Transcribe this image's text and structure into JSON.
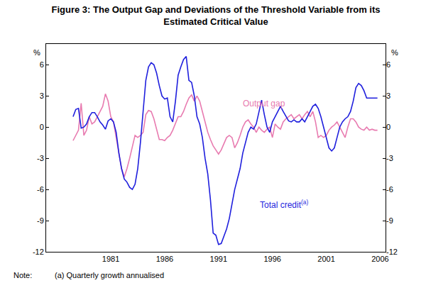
{
  "chart_data": {
    "type": "line",
    "title": "Figure 3: The Output Gap and Deviations of the Threshold Variable from its\nEstimated Critical Value",
    "y_label": "%",
    "notes": {
      "label": "Note:",
      "text": "(a) Quarterly growth annualised"
    },
    "grid": false,
    "xlim": [
      1975.5,
      2007
    ],
    "xticks": [
      {
        "value": 1981.5,
        "label": "1981"
      },
      {
        "value": 1986.5,
        "label": "1986"
      },
      {
        "value": 1991.5,
        "label": "1991"
      },
      {
        "value": 1996.5,
        "label": "1996"
      },
      {
        "value": 2001.5,
        "label": "2001"
      },
      {
        "value": 2006.5,
        "label": "2006"
      }
    ],
    "ylim": [
      -12,
      8
    ],
    "yticks": [
      -12,
      -9,
      -6,
      -3,
      0,
      3,
      6
    ],
    "x": [
      1978,
      1978.25,
      1978.5,
      1978.75,
      1979,
      1979.25,
      1979.5,
      1979.75,
      1980,
      1980.25,
      1980.5,
      1980.75,
      1981,
      1981.25,
      1981.5,
      1981.75,
      1982,
      1982.25,
      1982.5,
      1982.75,
      1983,
      1983.25,
      1983.5,
      1983.75,
      1984,
      1984.25,
      1984.5,
      1984.75,
      1985,
      1985.25,
      1985.5,
      1985.75,
      1986,
      1986.25,
      1986.5,
      1986.75,
      1987,
      1987.25,
      1987.5,
      1987.75,
      1988,
      1988.25,
      1988.5,
      1988.75,
      1989,
      1989.25,
      1989.5,
      1989.75,
      1990,
      1990.25,
      1990.5,
      1990.75,
      1991,
      1991.25,
      1991.5,
      1991.75,
      1992,
      1992.25,
      1992.5,
      1992.75,
      1993,
      1993.25,
      1993.5,
      1993.75,
      1994,
      1994.25,
      1994.5,
      1994.75,
      1995,
      1995.25,
      1995.5,
      1995.75,
      1996,
      1996.25,
      1996.5,
      1996.75,
      1997,
      1997.25,
      1997.5,
      1997.75,
      1998,
      1998.25,
      1998.5,
      1998.75,
      1999,
      1999.25,
      1999.5,
      1999.75,
      2000,
      2000.25,
      2000.5,
      2000.75,
      2001,
      2001.25,
      2001.5,
      2001.75,
      2002,
      2002.25,
      2002.5,
      2002.75,
      2003,
      2003.25,
      2003.5,
      2003.75,
      2004,
      2004.25,
      2004.5,
      2004.75,
      2005,
      2005.25,
      2005.5,
      2005.75,
      2006,
      2006.25
    ],
    "series": [
      {
        "name": "Output gap",
        "color": "#e87bb0",
        "values": [
          -1.3,
          -0.8,
          -0.3,
          2.3,
          -0.8,
          -0.3,
          1.0,
          0.3,
          0.5,
          1.0,
          1.5,
          2.0,
          3.2,
          2.5,
          1.0,
          0.5,
          -1.0,
          -2.5,
          -4.0,
          -4.8,
          -4.0,
          -3.0,
          -2.0,
          -0.8,
          -1.0,
          -0.8,
          -0.5,
          1.2,
          1.6,
          1.5,
          0.8,
          -0.2,
          -1.2,
          -1.2,
          -1.3,
          -1.0,
          -0.8,
          -0.3,
          0.3,
          1.0,
          1.0,
          1.5,
          2.2,
          2.8,
          3.1,
          2.5,
          3.0,
          2.5,
          1.5,
          0.5,
          -0.5,
          -1.2,
          -1.8,
          -2.2,
          -2.6,
          -2.2,
          -1.6,
          -1.0,
          -0.8,
          -1.0,
          -2.0,
          -1.5,
          -0.8,
          0.0,
          0.5,
          0.7,
          0.3,
          0.0,
          -0.5,
          0.0,
          -0.3,
          -0.5,
          -0.2,
          0.0,
          -1.0,
          0.3,
          0.0,
          -0.2,
          0.5,
          0.8,
          1.0,
          1.2,
          0.8,
          1.0,
          1.2,
          0.8,
          1.2,
          1.5,
          1.0,
          1.5,
          0.5,
          -1.0,
          -0.8,
          -1.0,
          -0.8,
          -0.3,
          0.0,
          0.2,
          0.5,
          0.0,
          -0.5,
          -1.0,
          0.0,
          0.8,
          0.8,
          0.5,
          0.0,
          -0.2,
          -0.3,
          0.0,
          -0.3,
          -0.2,
          -0.3,
          -0.3
        ]
      },
      {
        "name": "Total credit",
        "superscript": "(a)",
        "color": "#1f1fdd",
        "values": [
          1.0,
          1.7,
          1.8,
          -0.1,
          0.0,
          0.3,
          1.0,
          1.4,
          1.4,
          1.0,
          0.5,
          0.2,
          -0.2,
          0.6,
          0.8,
          0.5,
          -0.5,
          -2.5,
          -4.0,
          -5.0,
          -5.3,
          -5.8,
          -6.0,
          -5.5,
          -4.0,
          -1.5,
          1.5,
          4.5,
          5.8,
          6.2,
          6.0,
          5.2,
          4.0,
          3.0,
          2.7,
          2.8,
          1.0,
          0.5,
          2.5,
          5.0,
          5.8,
          6.5,
          6.8,
          4.5,
          4.3,
          3.0,
          1.0,
          0.3,
          -1.0,
          -3.0,
          -4.5,
          -7.0,
          -10.2,
          -10.4,
          -11.3,
          -11.2,
          -10.5,
          -9.8,
          -8.8,
          -7.5,
          -6.0,
          -5.0,
          -4.0,
          -2.5,
          -1.5,
          -0.5,
          0.0,
          -0.2,
          0.3,
          1.5,
          2.6,
          1.2,
          0.0,
          -0.5,
          0.5,
          1.0,
          1.5,
          2.0,
          1.5,
          1.0,
          0.6,
          0.5,
          0.7,
          0.5,
          0.5,
          0.8,
          0.5,
          1.0,
          1.5,
          2.0,
          2.2,
          1.8,
          1.0,
          0.0,
          -1.0,
          -2.0,
          -2.3,
          -2.0,
          -1.0,
          0.0,
          0.5,
          0.8,
          1.0,
          1.5,
          2.5,
          3.8,
          4.2,
          4.0,
          3.5,
          2.8,
          2.8,
          2.8,
          2.8,
          2.8
        ]
      }
    ]
  }
}
